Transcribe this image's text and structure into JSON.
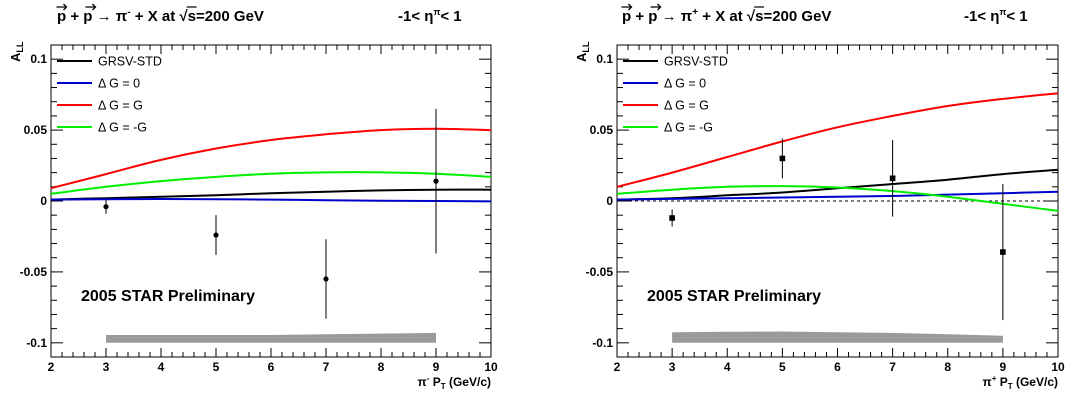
{
  "chart_data": [
    {
      "type": "line",
      "title": "p + p → π⁻ + X at √s=200 GeV",
      "title_parts": {
        "reaction": "p + p → π",
        "charge": "-",
        "mid": " + X at ",
        "sqrt": "√",
        "energy": "s=200 GeV"
      },
      "eta_range": {
        "pre": "-1< η",
        "sup": "π",
        "post": "< 1"
      },
      "xlabel": {
        "main": "π",
        "sup": "-",
        "mid": " P",
        "sub": "T",
        "unit": " (GeV/c)"
      },
      "ylabel": {
        "main": "A",
        "sub": "LL"
      },
      "xlim": [
        2,
        10
      ],
      "ylim": [
        -0.11,
        0.11
      ],
      "xticks": [
        "2",
        "3",
        "4",
        "5",
        "6",
        "7",
        "8",
        "9",
        "10"
      ],
      "yticks": [
        {
          "v": -0.1,
          "label": "-0.1"
        },
        {
          "v": -0.05,
          "label": "-0.05"
        },
        {
          "v": 0,
          "label": "0"
        },
        {
          "v": 0.05,
          "label": "0.05"
        },
        {
          "v": 0.1,
          "label": "0.1"
        }
      ],
      "annotation": "2005 STAR Preliminary",
      "series": [
        {
          "name": "GRSV-STD",
          "color": "#000000",
          "x": [
            2,
            3,
            4,
            5,
            6,
            7,
            8,
            9,
            10
          ],
          "y": [
            0.001,
            0.002,
            0.003,
            0.004,
            0.0055,
            0.0065,
            0.0075,
            0.008,
            0.008
          ]
        },
        {
          "name": "Δ G =  0",
          "color": "#0000cc",
          "x": [
            2,
            3,
            4,
            5,
            6,
            7,
            8,
            9,
            10
          ],
          "y": [
            0.001,
            0.0012,
            0.0014,
            0.0012,
            0.001,
            0.0005,
            0.0002,
            0.0,
            -0.0003
          ]
        },
        {
          "name": "Δ G =  G",
          "color": "#ff0000",
          "x": [
            2,
            3,
            4,
            5,
            6,
            7,
            8,
            9,
            10
          ],
          "y": [
            0.009,
            0.019,
            0.029,
            0.037,
            0.043,
            0.047,
            0.05,
            0.051,
            0.05
          ]
        },
        {
          "name": "Δ G = -G",
          "color": "#00ee00",
          "x": [
            2,
            3,
            4,
            5,
            6,
            7,
            8,
            9,
            10
          ],
          "y": [
            0.005,
            0.01,
            0.014,
            0.017,
            0.0192,
            0.0202,
            0.0202,
            0.0192,
            0.017
          ]
        }
      ],
      "data_points": [
        {
          "x": 3,
          "y": -0.004,
          "err": 0.005
        },
        {
          "x": 5,
          "y": -0.024,
          "err": 0.014
        },
        {
          "x": 7,
          "y": -0.055,
          "err": 0.028
        },
        {
          "x": 9,
          "y": 0.014,
          "err": 0.051
        }
      ],
      "marker": "circle",
      "zero_line": false,
      "systematic_band": {
        "x": [
          3,
          4,
          5,
          6,
          7,
          8,
          9
        ],
        "upper": [
          -0.0945,
          -0.0945,
          -0.0945,
          -0.0945,
          -0.094,
          -0.0935,
          -0.093
        ],
        "lower": -0.1
      }
    },
    {
      "type": "line",
      "title": "p + p → π⁺ + X at √s=200 GeV",
      "title_parts": {
        "reaction": "p + p → π",
        "charge": "+",
        "mid": " + X at ",
        "sqrt": "√",
        "energy": "s=200 GeV"
      },
      "eta_range": {
        "pre": "-1< η",
        "sup": "π",
        "post": "< 1"
      },
      "xlabel": {
        "main": "π",
        "sup": "+",
        "mid": " P",
        "sub": "T",
        "unit": " (GeV/c)"
      },
      "ylabel": {
        "main": "A",
        "sub": "LL"
      },
      "xlim": [
        2,
        10
      ],
      "ylim": [
        -0.11,
        0.11
      ],
      "xticks": [
        "2",
        "3",
        "4",
        "5",
        "6",
        "7",
        "8",
        "9",
        "10"
      ],
      "yticks": [
        {
          "v": -0.1,
          "label": "-0.1"
        },
        {
          "v": -0.05,
          "label": "-0.05"
        },
        {
          "v": 0,
          "label": "0"
        },
        {
          "v": 0.05,
          "label": "0.05"
        },
        {
          "v": 0.1,
          "label": "0.1"
        }
      ],
      "annotation": "2005 STAR Preliminary",
      "series": [
        {
          "name": "GRSV-STD",
          "color": "#000000",
          "x": [
            2,
            3,
            4,
            5,
            6,
            7,
            8,
            9,
            10
          ],
          "y": [
            0.001,
            0.002,
            0.004,
            0.006,
            0.009,
            0.012,
            0.015,
            0.019,
            0.022
          ]
        },
        {
          "name": "Δ G =  0",
          "color": "#0000cc",
          "x": [
            2,
            3,
            4,
            5,
            6,
            7,
            8,
            9,
            10
          ],
          "y": [
            0.001,
            0.0015,
            0.002,
            0.0025,
            0.003,
            0.0035,
            0.0045,
            0.0055,
            0.0065
          ]
        },
        {
          "name": "Δ G =  G",
          "color": "#ff0000",
          "x": [
            2,
            3,
            4,
            5,
            6,
            7,
            8,
            9,
            10
          ],
          "y": [
            0.01,
            0.02,
            0.031,
            0.042,
            0.052,
            0.06,
            0.067,
            0.072,
            0.076
          ]
        },
        {
          "name": "Δ G = -G",
          "color": "#00ee00",
          "x": [
            2,
            3,
            4,
            5,
            6,
            7,
            8,
            9,
            10
          ],
          "y": [
            0.005,
            0.008,
            0.01,
            0.0105,
            0.0095,
            0.007,
            0.003,
            -0.002,
            -0.007
          ]
        }
      ],
      "data_points": [
        {
          "x": 3,
          "y": -0.012,
          "err": 0.006
        },
        {
          "x": 5,
          "y": 0.03,
          "err": 0.014
        },
        {
          "x": 7,
          "y": 0.016,
          "err": 0.027
        },
        {
          "x": 9,
          "y": -0.036,
          "err": 0.048
        }
      ],
      "marker": "square",
      "zero_line": true,
      "systematic_band": {
        "x": [
          3,
          4,
          5,
          6,
          7,
          8,
          9
        ],
        "upper": [
          -0.0925,
          -0.0922,
          -0.092,
          -0.0925,
          -0.093,
          -0.094,
          -0.095
        ],
        "lower": -0.1
      }
    }
  ]
}
